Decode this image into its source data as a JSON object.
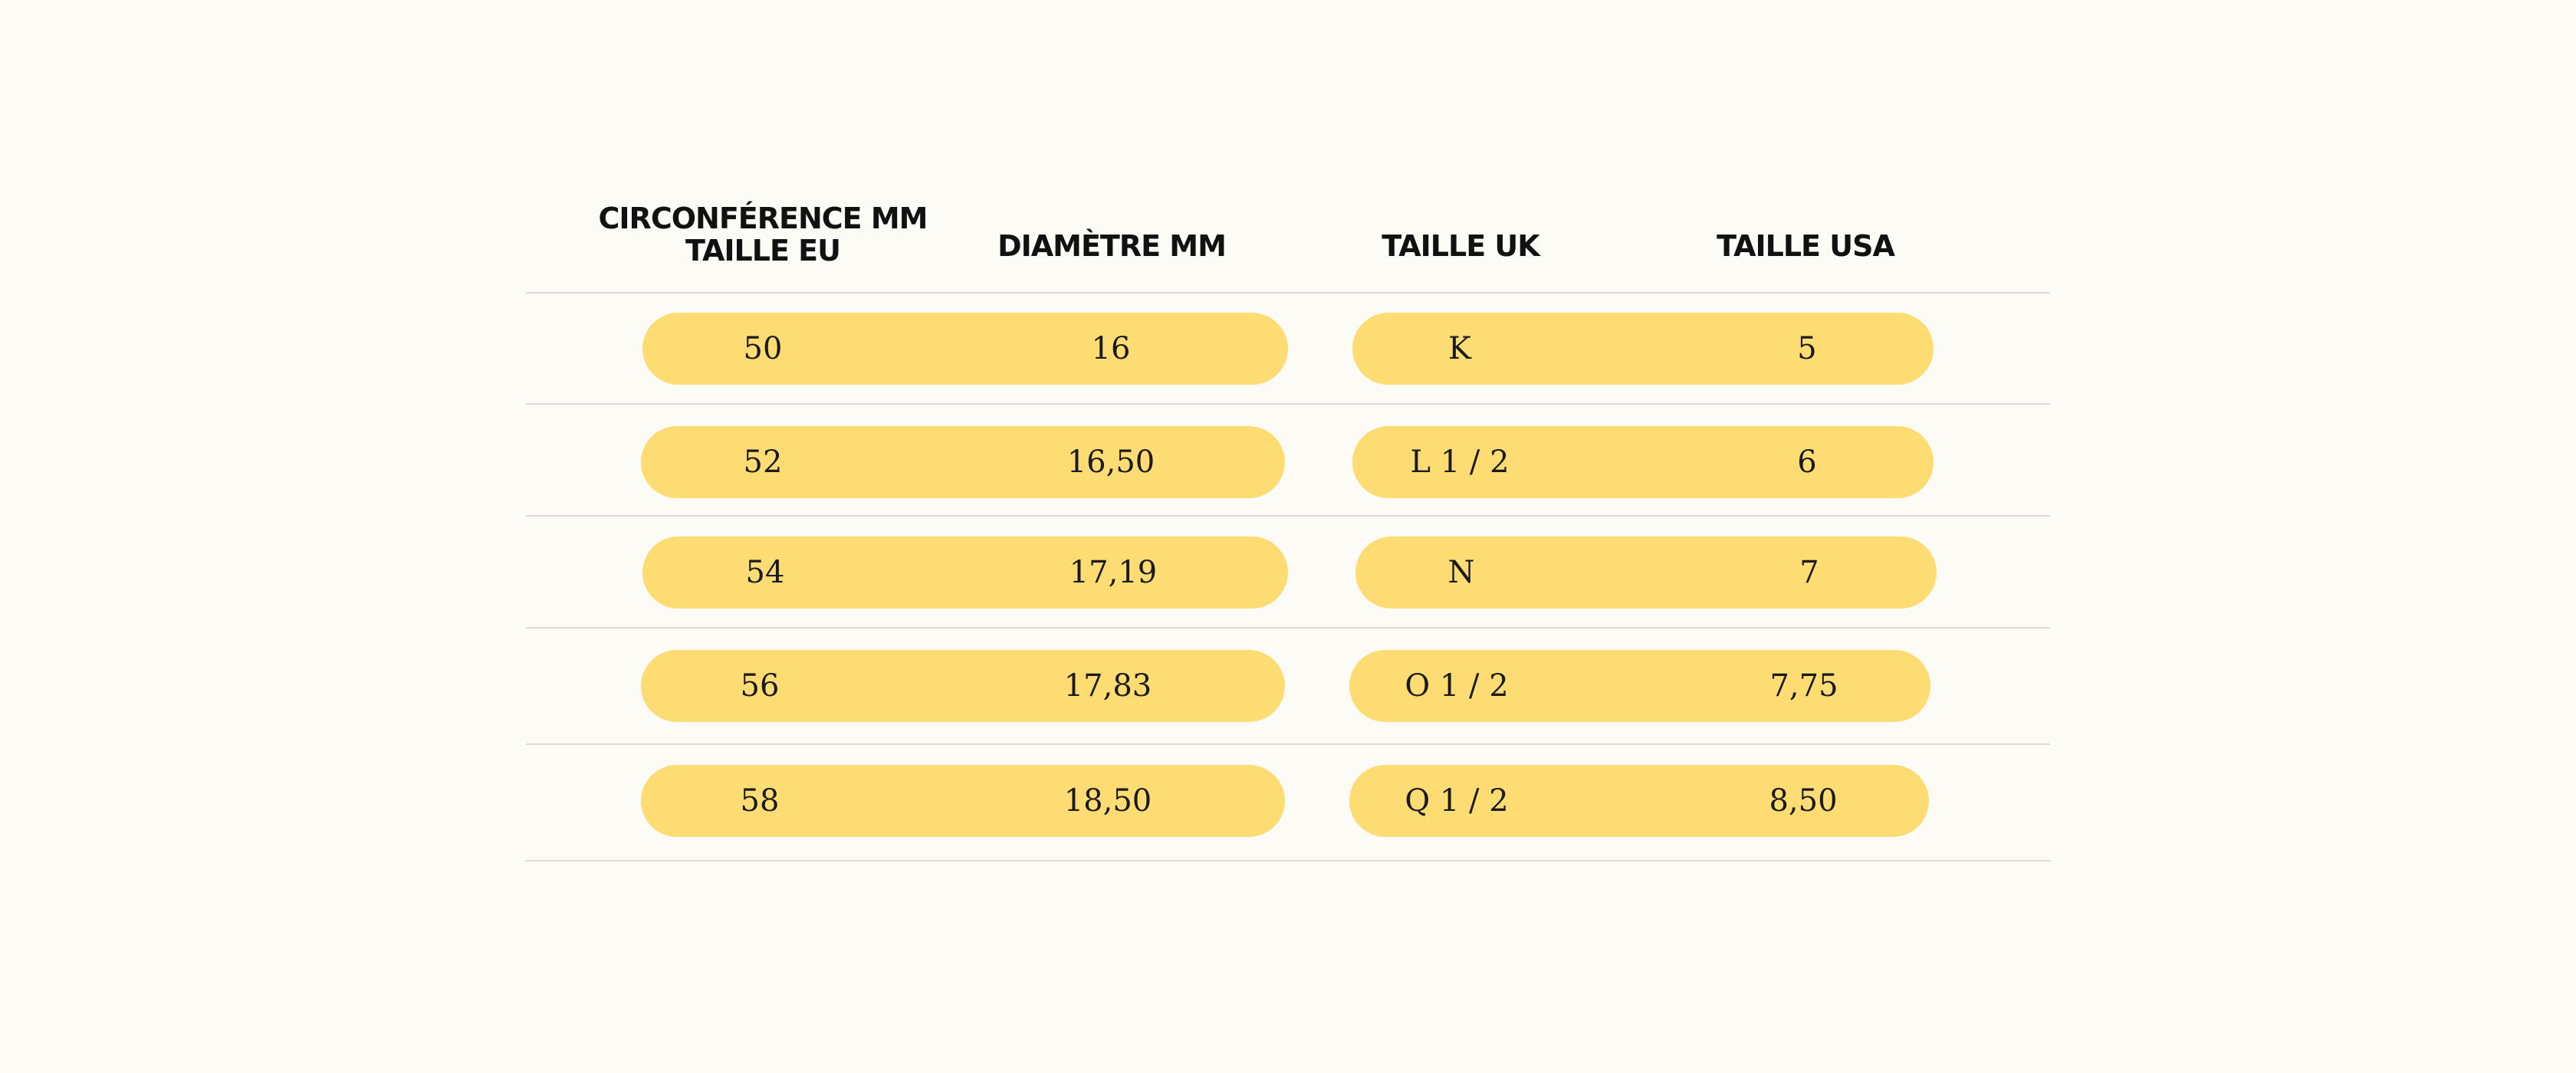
{
  "headers": {
    "col1_line1": "CIRCONFÉRENCE MM",
    "col1_line2": "TAILLE EU",
    "col2": "DIAMÈTRE MM",
    "col3": "TAILLE UK",
    "col4": "TAILLE USA"
  },
  "rows": [
    {
      "circumference": "50",
      "diameter": "16",
      "uk": "K",
      "usa": "5"
    },
    {
      "circumference": "52",
      "diameter": "16,50",
      "uk": "L 1 / 2",
      "usa": "6"
    },
    {
      "circumference": "54",
      "diameter": "17,19",
      "uk": "N",
      "usa": "7"
    },
    {
      "circumference": "56",
      "diameter": "17,83",
      "uk": "O 1 / 2",
      "usa": "7,75"
    },
    {
      "circumference": "58",
      "diameter": "18,50",
      "uk": "Q 1 / 2",
      "usa": "8,50"
    }
  ],
  "colors": {
    "background": "#fdfbf5",
    "pill": "#fddc73",
    "divider": "#dcdcdc",
    "text": "#1a1a1a"
  }
}
